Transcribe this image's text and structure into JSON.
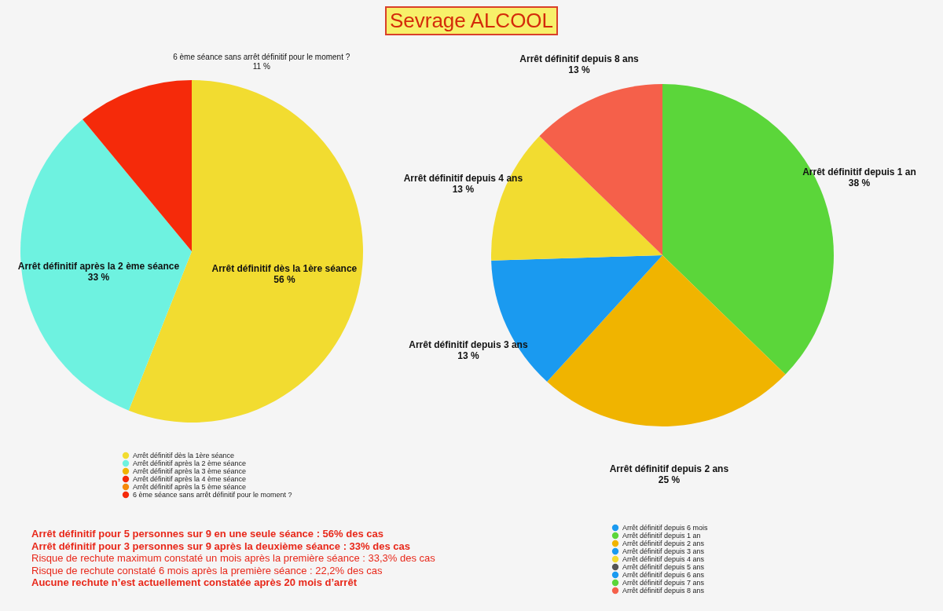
{
  "chart_data": [
    {
      "type": "pie",
      "title": "Sevrage ALCOOL",
      "categories": [
        "Arrêt définitif dès la 1ère séance",
        "Arrêt définitif après la 2 ème séance",
        "Arrêt définitif après la 3 ème séance",
        "Arrêt définitif après la 4 ème séance",
        "Arrêt définitif après la 5 ème séance",
        "6 ème séance sans arrêt définitif pour le moment ?"
      ],
      "values": [
        56,
        33,
        0,
        0,
        0,
        11
      ],
      "colors": [
        "#f2dc30",
        "#6ef2e0",
        "#f0b400",
        "#f52a0a",
        "#f58a0a",
        "#f52a0a"
      ],
      "value_labels": [
        "56 %",
        "33 %",
        null,
        null,
        null,
        "11 %"
      ],
      "legend": "bottom",
      "annotations": [
        "Arrêt définitif pour 5 personnes sur 9 en une seule séance : 56% des cas",
        "Arrêt définitif pour 3 personnes sur 9 après la deuxième séance : 33% des cas",
        "Risque de rechute maximum constaté un mois après la première séance : 33,3% des cas",
        "Risque de rechute constaté 6 mois après la première séance : 22,2% des cas",
        "Aucune rechute n’est actuellement constatée après 20 mois d’arrêt"
      ]
    },
    {
      "type": "pie",
      "categories": [
        "Arrêt définitif depuis 6 mois",
        "Arrêt définitif depuis 1 an",
        "Arrêt définitif depuis 2 ans",
        "Arrêt définitif depuis 3 ans",
        "Arrêt définitif depuis 4 ans",
        "Arrêt définitif depuis 5 ans",
        "Arrêt définitif depuis 6 ans",
        "Arrêt définitif depuis 7 ans",
        "Arrêt définitif depuis 8 ans"
      ],
      "values": [
        0,
        38,
        25,
        13,
        13,
        0,
        0,
        0,
        13
      ],
      "colors": [
        "#1a9af0",
        "#5bd63a",
        "#f0b400",
        "#1a9af0",
        "#f2dc30",
        "#555555",
        "#1a9af0",
        "#5bd63a",
        "#f5604a"
      ],
      "value_labels": [
        null,
        "38 %",
        "25 %",
        "13 %",
        "13 %",
        null,
        null,
        null,
        "13 %"
      ],
      "legend": "bottom"
    }
  ]
}
